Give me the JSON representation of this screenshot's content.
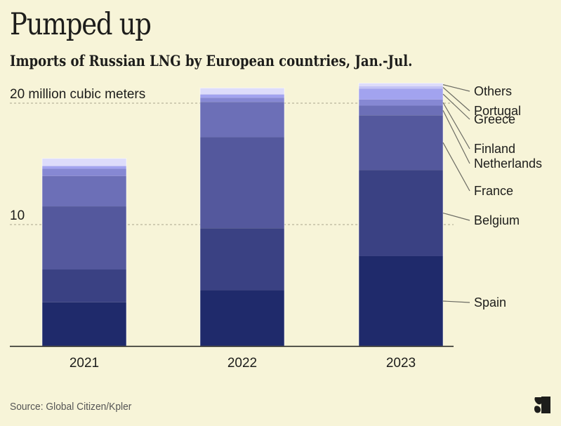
{
  "header": {
    "title": "Pumped up",
    "subtitle": "Imports of Russian LNG by European countries, Jan.-Jul."
  },
  "footer": {
    "source": "Source: Global Citizen/Kpler",
    "logo": "brand-s-logo-icon"
  },
  "colors": {
    "background": "#f7f4d8",
    "text": "#1d1d1b",
    "gridline": "#a8a48c",
    "leader": "#6b6b63"
  },
  "chart_data": {
    "type": "bar",
    "stacked": true,
    "title": "Pumped up",
    "subtitle": "Imports of Russian LNG by European countries, Jan.-Jul.",
    "xlabel": "",
    "ylabel": "million cubic meters",
    "categories": [
      "2021",
      "2022",
      "2023"
    ],
    "ylim": [
      0,
      22
    ],
    "grid": true,
    "y_ticks": [
      {
        "value": 10,
        "label": "10"
      },
      {
        "value": 20,
        "label": "20 million cubic meters"
      }
    ],
    "legend": "right (direct labels on 2023 bar)",
    "series": [
      {
        "name": "Spain",
        "color": "#1f2a6b",
        "values": [
          3.6,
          4.6,
          7.4
        ]
      },
      {
        "name": "Belgium",
        "color": "#3a4183",
        "values": [
          2.7,
          5.1,
          7.1
        ]
      },
      {
        "name": "France",
        "color": "#54589d",
        "values": [
          5.2,
          7.5,
          4.5
        ]
      },
      {
        "name": "Netherlands",
        "color": "#6c6fb7",
        "values": [
          2.5,
          2.9,
          0.8
        ]
      },
      {
        "name": "Finland",
        "color": "#8688d3",
        "values": [
          0.6,
          0.35,
          0.5
        ]
      },
      {
        "name": "Greece",
        "color": "#a2a3ef",
        "values": [
          0.2,
          0.25,
          0.9
        ]
      },
      {
        "name": "Portugal",
        "color": "#c3c3f6",
        "values": [
          0.05,
          0.05,
          0.2
        ]
      },
      {
        "name": "Others",
        "color": "#dddcfb",
        "values": [
          0.6,
          0.5,
          0.25
        ]
      }
    ],
    "direct_labels": [
      "Others",
      "Portugal",
      "Greece",
      "Finland",
      "Netherlands",
      "France",
      "Belgium",
      "Spain"
    ]
  }
}
